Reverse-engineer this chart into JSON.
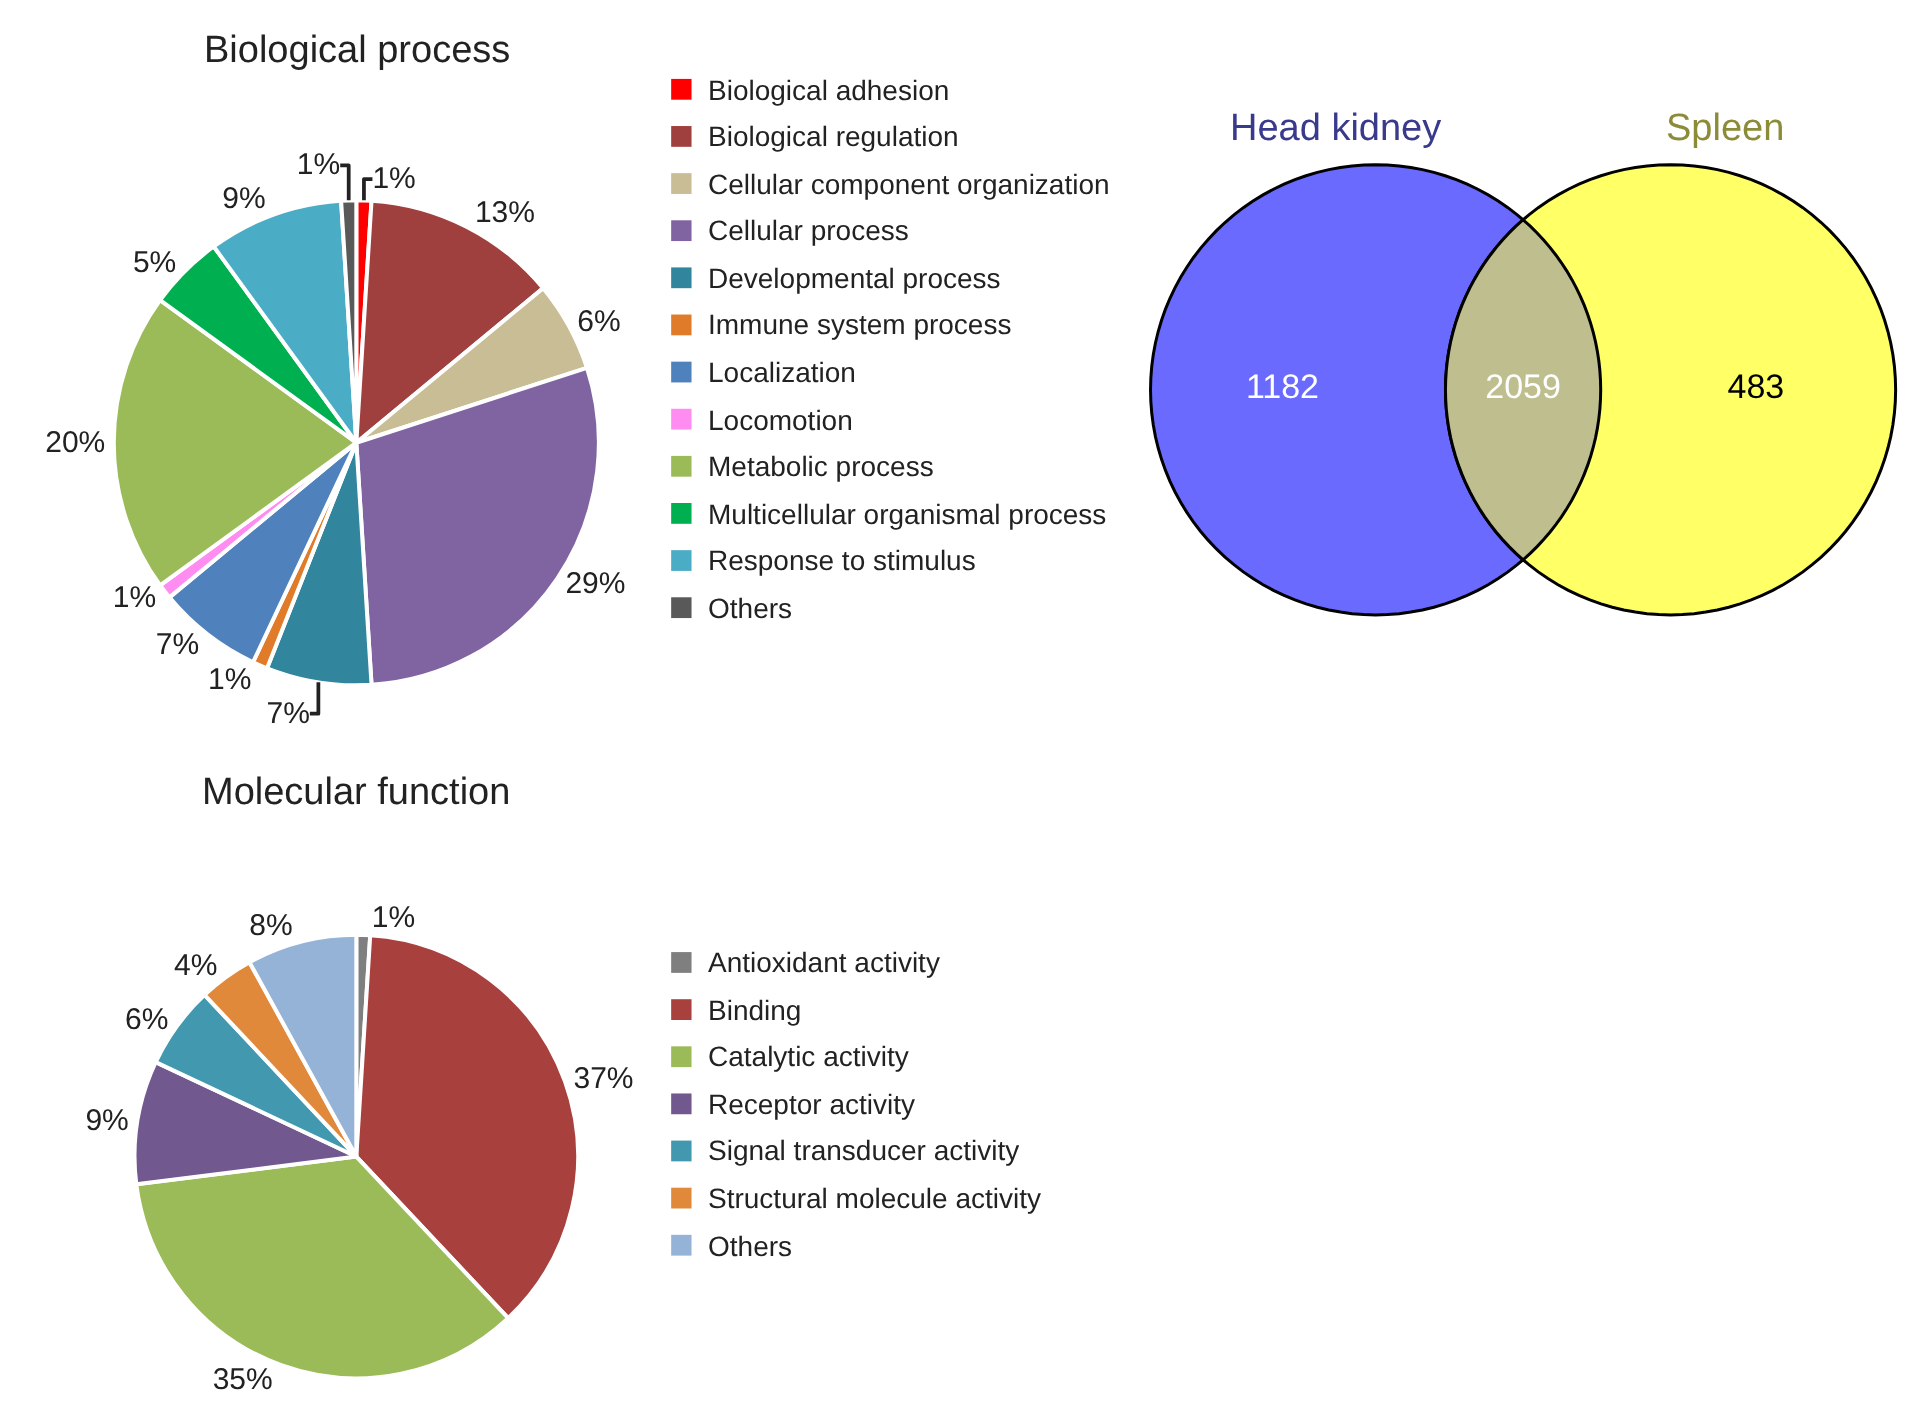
{
  "chart_data": [
    {
      "type": "pie",
      "title": "Biological process",
      "legend": "right",
      "categories": [
        "Biological adhesion",
        "Biological regulation",
        "Cellular component organization",
        "Cellular process",
        "Developmental process",
        "Immune system process",
        "Localization",
        "Locomotion",
        "Metabolic process",
        "Multicellular organismal process",
        "Response to stimulus",
        "Others"
      ],
      "values": [
        1,
        13,
        6,
        29,
        7,
        1,
        7,
        1,
        20,
        5,
        9,
        1
      ],
      "value_labels": [
        "1%",
        "13%",
        "6%",
        "29%",
        "7%",
        "1%",
        "7%",
        "1%",
        "20%",
        "5%",
        "9%",
        "1%"
      ],
      "colors": [
        "#ff0000",
        "#a0403e",
        "#c9bd95",
        "#8064a2",
        "#31859c",
        "#e07b2a",
        "#4f81bd",
        "#ff8cf0",
        "#9bbb59",
        "#00b050",
        "#4bacc6",
        "#595959"
      ]
    },
    {
      "type": "other",
      "data_labels": true,
      "categories": [
        "Head kidney",
        null,
        "Spleen"
      ],
      "values": [
        1182,
        2059,
        483
      ],
      "colors": [
        "#6a6aff",
        "#bebe8e",
        "#ffff66"
      ]
    },
    {
      "type": "pie",
      "title": "Molecular function",
      "legend": "right",
      "categories": [
        "Antioxidant activity",
        "Binding",
        "Catalytic activity",
        "Receptor activity",
        "Signal transducer activity",
        "Structural molecule activity",
        "Others"
      ],
      "values": [
        1,
        37,
        35,
        9,
        6,
        4,
        8
      ],
      "value_labels": [
        "1%",
        "37%",
        "35%",
        "9%",
        "6%",
        "4%",
        "8%"
      ],
      "colors": [
        "#7f7f7f",
        "#a8403e",
        "#9bbb59",
        "#71588f",
        "#4198af",
        "#e0893a",
        "#95b3d7"
      ]
    }
  ]
}
